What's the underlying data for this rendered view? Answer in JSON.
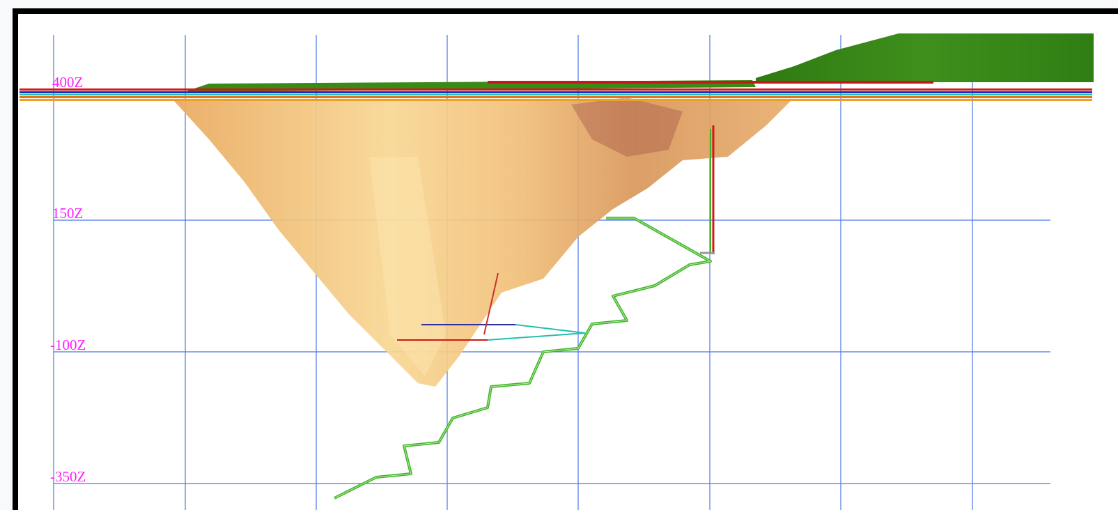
{
  "grid_labels": [
    "400Z",
    "150Z",
    "-100Z",
    "-350Z"
  ]
}
